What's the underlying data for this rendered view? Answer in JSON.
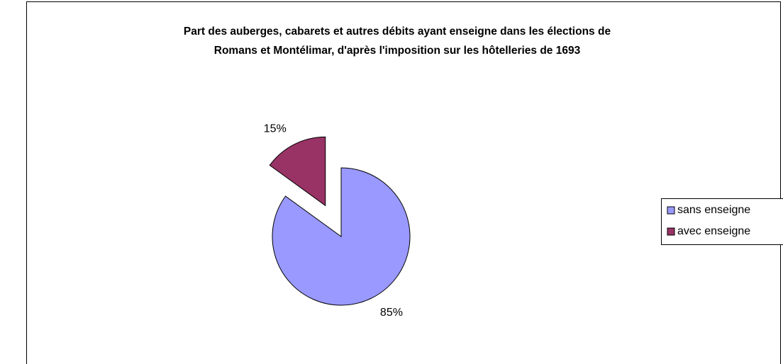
{
  "chart_data": {
    "type": "pie",
    "title": "Part des auberges, cabarets et autres débits ayant enseigne dans les élections de",
    "subtitle": "Romans et Montélimar, d'après l'imposition sur les hôtelleries de 1693",
    "categories": [
      "sans enseigne",
      "avec enseigne"
    ],
    "values": [
      85,
      15
    ],
    "value_labels": [
      "85%",
      "15%"
    ],
    "colors": [
      "#9999ff",
      "#993366"
    ],
    "explode": [
      false,
      true
    ],
    "legend": "right"
  }
}
